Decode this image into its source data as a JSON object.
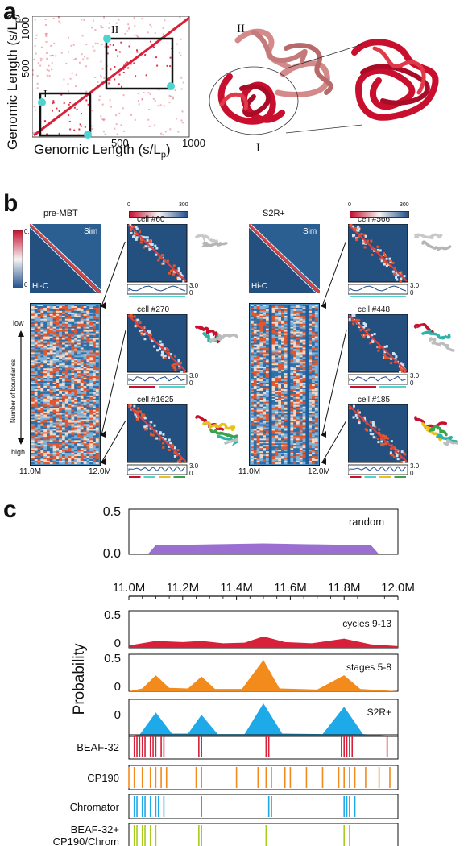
{
  "panel_labels": {
    "a": "a",
    "b": "b",
    "c": "c"
  },
  "panel_a": {
    "xlabel_main": "Genomic Length (s/L",
    "xlabel_sub": "p",
    "xlabel_close": ")",
    "ylabel_main": "Genomic Length (s/L",
    "ylabel_sub": "p",
    "ylabel_close": ")",
    "ticks": [
      "500",
      "1000",
      "500",
      "1000"
    ],
    "domain_I": "I",
    "domain_II": "II",
    "structure_I": "I",
    "structure_II": "II",
    "colors": {
      "contact": "#d8203a",
      "marker": "#4fd3d0",
      "polymer_light": "#d48a8a",
      "polymer_dark": "#c8102e"
    }
  },
  "panel_b": {
    "left": {
      "title": "pre-MBT",
      "sim_label": "Sim",
      "hic_label": "Hi-C",
      "colorbar_top": "0.3",
      "colorbar_bottom": "0",
      "boundaries_axis": "Number of boundaries",
      "low": "low",
      "high": "high",
      "x_start": "11.0M",
      "x_end": "12.0M",
      "cells": [
        {
          "label": "cell #60",
          "axis_top": "3.0",
          "axis_bottom": "0"
        },
        {
          "label": "cell #270",
          "axis_top": "3.0",
          "axis_bottom": "0"
        },
        {
          "label": "cell #1625",
          "axis_top": "3.0",
          "axis_bottom": "0"
        }
      ]
    },
    "right": {
      "title": "S2R+",
      "sim_label": "Sim",
      "hic_label": "Hi-C",
      "x_start": "11.0M",
      "x_end": "12.0M",
      "cells": [
        {
          "label": "cell #566",
          "axis_top": "3.0",
          "axis_bottom": "0"
        },
        {
          "label": "cell #448",
          "axis_top": "3.0",
          "axis_bottom": "0"
        },
        {
          "label": "cell #185",
          "axis_top": "3.0",
          "axis_bottom": "0"
        }
      ]
    },
    "scale_min": "0",
    "scale_max": "300",
    "scale_min_2": "0",
    "scale_max_2": "300"
  },
  "panel_c": {
    "random": {
      "label": "random",
      "yticks": [
        "0.5",
        "0.0"
      ]
    },
    "xticks": [
      "11.0M",
      "11.2M",
      "11.4M",
      "11.6M",
      "11.8M",
      "12.0M"
    ],
    "ylabel": "Probability",
    "tracks": [
      {
        "label": "cycles 9-13",
        "yticks": [
          "0.5",
          "0"
        ],
        "color": "#d8203a"
      },
      {
        "label": "stages 5-8",
        "yticks": [
          "0.5",
          "0"
        ],
        "color": "#f28a1c"
      },
      {
        "label": "S2R+",
        "yticks": [
          "0"
        ],
        "color": "#1ea9e8"
      }
    ],
    "chip": [
      {
        "label": "BEAF-32",
        "color": "#d8203a"
      },
      {
        "label": "CP190",
        "color": "#f28a1c"
      },
      {
        "label": "Chromator",
        "color": "#1ea9e8"
      },
      {
        "label": "BEAF-32+",
        "label2": "CP190/Chrom",
        "color": "#a8cc1c"
      }
    ]
  },
  "chart_data": [
    {
      "type": "area",
      "title": "",
      "series": [
        {
          "name": "random",
          "x": [
            11.07,
            11.1,
            11.3,
            11.5,
            11.7,
            11.9,
            11.93
          ],
          "values": [
            0.0,
            0.1,
            0.11,
            0.12,
            0.11,
            0.1,
            0.0
          ]
        }
      ],
      "ylim": [
        0,
        0.5
      ],
      "xlim": [
        11.0,
        12.0
      ]
    },
    {
      "type": "area",
      "ylabel": "Probability",
      "xlim": [
        11.0,
        12.0
      ],
      "series": [
        {
          "name": "cycles 9-13",
          "x": [
            11.0,
            11.1,
            11.2,
            11.27,
            11.35,
            11.43,
            11.5,
            11.58,
            11.68,
            11.8,
            11.9,
            12.0
          ],
          "values": [
            0.04,
            0.12,
            0.1,
            0.12,
            0.08,
            0.09,
            0.2,
            0.1,
            0.08,
            0.16,
            0.06,
            0.03
          ]
        },
        {
          "name": "stages 5-8",
          "x": [
            11.0,
            11.05,
            11.1,
            11.15,
            11.22,
            11.27,
            11.32,
            11.42,
            11.5,
            11.56,
            11.7,
            11.8,
            11.86,
            12.0
          ],
          "values": [
            0.0,
            0.05,
            0.28,
            0.06,
            0.05,
            0.26,
            0.04,
            0.04,
            0.55,
            0.05,
            0.03,
            0.28,
            0.04,
            0.0
          ]
        },
        {
          "name": "S2R+",
          "x": [
            11.0,
            11.04,
            11.1,
            11.16,
            11.22,
            11.27,
            11.33,
            11.43,
            11.5,
            11.57,
            11.72,
            11.8,
            11.87,
            12.0
          ],
          "values": [
            0.0,
            0.03,
            0.42,
            0.05,
            0.05,
            0.38,
            0.04,
            0.04,
            0.58,
            0.05,
            0.04,
            0.52,
            0.04,
            0.0
          ]
        }
      ]
    }
  ]
}
